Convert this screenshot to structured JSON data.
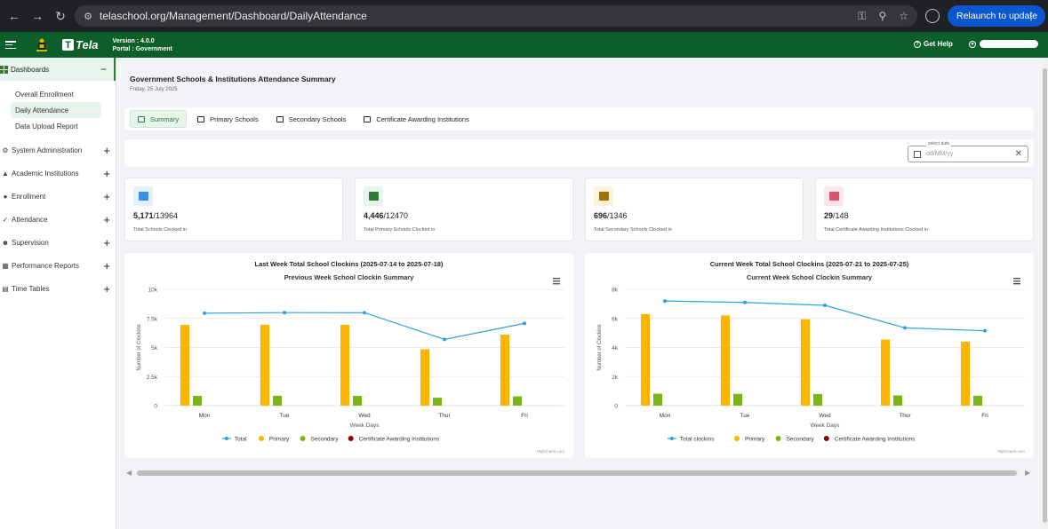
{
  "browser": {
    "url": "telaschool.org/Management/Dashboard/DailyAttendance",
    "relaunch_label": "Relaunch to update"
  },
  "appbar": {
    "logo_text": "Tela",
    "version_line": "Version : 4.0.0",
    "portal_line": "Portal : Government",
    "help_label": "Get Help"
  },
  "sidebar": {
    "section": "Dashboards",
    "subitems": [
      "Overall Enrollment",
      "Daily Attendance",
      "Data Upload Report"
    ],
    "active_sub": "Daily Attendance",
    "items": [
      {
        "label": "System Administration",
        "icon": "gear-icon"
      },
      {
        "label": "Academic Institutions",
        "icon": "graduation-cap-icon"
      },
      {
        "label": "Enrollment",
        "icon": "users-icon"
      },
      {
        "label": "Attendance",
        "icon": "check-icon"
      },
      {
        "label": "Supervision",
        "icon": "person-icon"
      },
      {
        "label": "Performance Reports",
        "icon": "chart-icon"
      },
      {
        "label": "Time Tables",
        "icon": "calendar-icon"
      }
    ]
  },
  "page": {
    "title": "Government Schools & Institutions Attendance Summary",
    "date": "Friday, 25 July 2025"
  },
  "tabs": [
    "Summary",
    "Primary Schools",
    "Secondary Schools",
    "Certificate Awarding Institutions"
  ],
  "filter": {
    "label": "select date",
    "placeholder": "dd/MM/yy"
  },
  "cards": [
    {
      "value": "5,171",
      "total": "/13964",
      "label": "Total Schools Clocked in",
      "icon": "school-icon",
      "color": "#3a8ee6",
      "bg": "#e3f0fd"
    },
    {
      "value": "4,446",
      "total": "/12470",
      "label": "Total Primary Schools Clocked in",
      "icon": "primary-school-icon",
      "color": "#2e7d32",
      "bg": "#e6f4ea"
    },
    {
      "value": "696",
      "total": "/1346",
      "label": "Total Secondary Schools Clocked in",
      "icon": "secondary-school-icon",
      "color": "#a0700a",
      "bg": "#fdf3dc"
    },
    {
      "value": "29",
      "total": "/148",
      "label": "Total Certificate Awarding Institutions Clocked in",
      "icon": "institution-icon",
      "color": "#d9536b",
      "bg": "#fde6ea"
    }
  ],
  "colors": {
    "total": "#2f9fe0",
    "primary": "#ffb400",
    "secondary": "#7cb518",
    "certificate": "#8b0000"
  },
  "chart_data": [
    {
      "type": "bar",
      "heading": "Last Week Total School Clockins (2025-07-14 to 2025-07-18)",
      "title": "Previous Week School Clockin Summary",
      "xlabel": "Week Days",
      "ylabel": "Number of Clockins",
      "categories": [
        "Mon",
        "Tue",
        "Wed",
        "Thur",
        "Fri"
      ],
      "ylim": [
        0,
        10000
      ],
      "yticks": [
        0,
        2500,
        5000,
        7500,
        10000
      ],
      "ytick_labels": [
        "0",
        "2.5k",
        "5k",
        "7.5k",
        "10k"
      ],
      "series": [
        {
          "name": "Total",
          "kind": "line",
          "values": [
            7950,
            8000,
            7990,
            5700,
            7070
          ]
        },
        {
          "name": "Primary",
          "kind": "bar",
          "values": [
            6950,
            6950,
            6950,
            4850,
            6100
          ]
        },
        {
          "name": "Secondary",
          "kind": "bar",
          "values": [
            840,
            850,
            840,
            680,
            800
          ]
        },
        {
          "name": "Certificate Awarding Institutions",
          "kind": "bar",
          "values": [
            0,
            0,
            0,
            0,
            0
          ]
        }
      ],
      "credit": "Highcharts.com"
    },
    {
      "type": "bar",
      "heading": "Current Week Total School Clockins (2025-07-21 to 2025-07-25)",
      "title": "Current Week School Clockin Summary",
      "xlabel": "Week Days",
      "ylabel": "Number of Clockins",
      "categories": [
        "Mon",
        "Tue",
        "Wed",
        "Thur",
        "Fri"
      ],
      "ylim": [
        0,
        8000
      ],
      "yticks": [
        0,
        2000,
        4000,
        6000,
        8000
      ],
      "ytick_labels": [
        "0",
        "2k",
        "4k",
        "6k",
        "8k"
      ],
      "series": [
        {
          "name": "Total clockins",
          "kind": "line",
          "values": [
            7200,
            7100,
            6900,
            5350,
            5150
          ]
        },
        {
          "name": "Primary",
          "kind": "bar",
          "values": [
            6300,
            6200,
            5950,
            4550,
            4400
          ]
        },
        {
          "name": "Secondary",
          "kind": "bar",
          "values": [
            820,
            810,
            800,
            700,
            680
          ]
        },
        {
          "name": "Certificate Awarding Institutions",
          "kind": "bar",
          "values": [
            0,
            0,
            0,
            0,
            0
          ]
        }
      ],
      "credit": "Highcharts.com"
    }
  ]
}
